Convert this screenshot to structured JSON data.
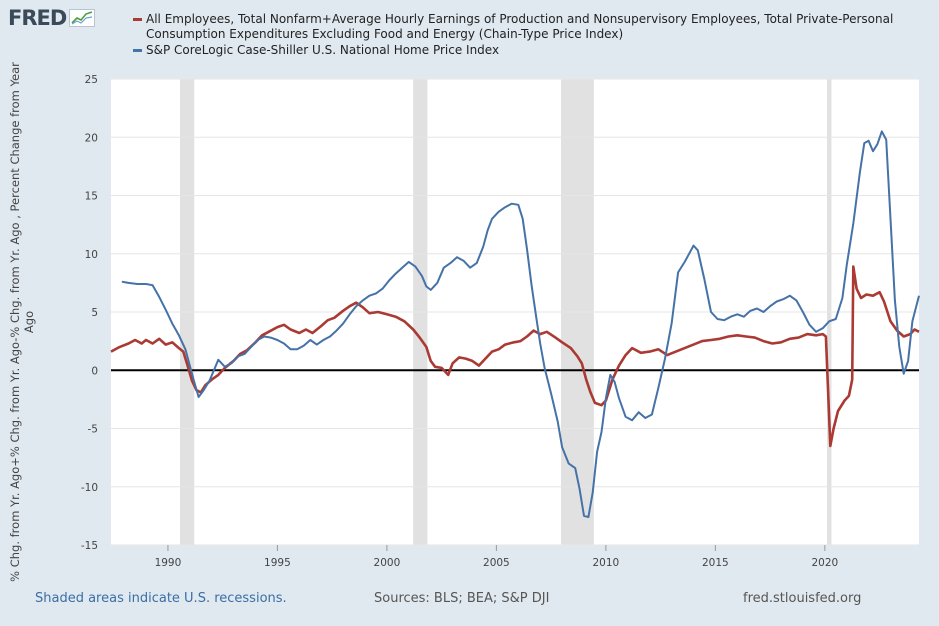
{
  "logo": {
    "text": "FRED"
  },
  "chart_data": {
    "type": "line",
    "ylabel": "% Chg. from Yr. Ago+% Chg. from Yr. Ago-% Chg. from Yr. Ago , Percent Change from Year Ago",
    "xlim": [
      1987.4,
      2024.3
    ],
    "ylim": [
      -15,
      25
    ],
    "yticks": [
      25,
      20,
      15,
      10,
      5,
      0,
      -5,
      -10,
      -15
    ],
    "xticks": [
      1990,
      1995,
      2000,
      2005,
      2010,
      2015,
      2020
    ],
    "recessions": [
      [
        1990.55,
        1991.2
      ],
      [
        2001.2,
        2001.85
      ],
      [
        2007.95,
        2009.45
      ],
      [
        2020.1,
        2020.3
      ]
    ],
    "series": [
      {
        "name": "All Employees, Total Nonfarm+Average Hourly Earnings of Production and Nonsupervisory Employees, Total Private-Personal Consumption Expenditures Excluding Food and Energy (Chain-Type Price Index)",
        "color": "#aa3a33",
        "points": [
          [
            1987.4,
            1.6
          ],
          [
            1987.8,
            2.0
          ],
          [
            1988.2,
            2.3
          ],
          [
            1988.5,
            2.6
          ],
          [
            1988.8,
            2.3
          ],
          [
            1989.0,
            2.6
          ],
          [
            1989.3,
            2.3
          ],
          [
            1989.6,
            2.7
          ],
          [
            1989.9,
            2.2
          ],
          [
            1990.2,
            2.4
          ],
          [
            1990.5,
            1.9
          ],
          [
            1990.7,
            1.6
          ],
          [
            1990.9,
            0.4
          ],
          [
            1991.1,
            -0.9
          ],
          [
            1991.3,
            -1.7
          ],
          [
            1991.5,
            -1.9
          ],
          [
            1991.7,
            -1.3
          ],
          [
            1992.0,
            -0.8
          ],
          [
            1992.3,
            -0.4
          ],
          [
            1992.6,
            0.2
          ],
          [
            1993.0,
            0.8
          ],
          [
            1993.3,
            1.4
          ],
          [
            1993.6,
            1.7
          ],
          [
            1994.0,
            2.4
          ],
          [
            1994.3,
            3.0
          ],
          [
            1994.6,
            3.3
          ],
          [
            1995.0,
            3.7
          ],
          [
            1995.3,
            3.9
          ],
          [
            1995.6,
            3.5
          ],
          [
            1996.0,
            3.2
          ],
          [
            1996.3,
            3.5
          ],
          [
            1996.6,
            3.2
          ],
          [
            1997.0,
            3.8
          ],
          [
            1997.3,
            4.3
          ],
          [
            1997.6,
            4.5
          ],
          [
            1998.0,
            5.1
          ],
          [
            1998.3,
            5.5
          ],
          [
            1998.6,
            5.8
          ],
          [
            1998.9,
            5.4
          ],
          [
            1999.2,
            4.9
          ],
          [
            1999.6,
            5.0
          ],
          [
            2000.0,
            4.8
          ],
          [
            2000.4,
            4.6
          ],
          [
            2000.8,
            4.2
          ],
          [
            2001.2,
            3.5
          ],
          [
            2001.5,
            2.8
          ],
          [
            2001.8,
            2.0
          ],
          [
            2002.0,
            0.8
          ],
          [
            2002.2,
            0.3
          ],
          [
            2002.5,
            0.2
          ],
          [
            2002.8,
            -0.4
          ],
          [
            2003.0,
            0.6
          ],
          [
            2003.3,
            1.1
          ],
          [
            2003.6,
            1.0
          ],
          [
            2003.9,
            0.8
          ],
          [
            2004.2,
            0.4
          ],
          [
            2004.5,
            1.0
          ],
          [
            2004.8,
            1.6
          ],
          [
            2005.1,
            1.8
          ],
          [
            2005.4,
            2.2
          ],
          [
            2005.8,
            2.4
          ],
          [
            2006.1,
            2.5
          ],
          [
            2006.4,
            2.9
          ],
          [
            2006.7,
            3.4
          ],
          [
            2007.0,
            3.1
          ],
          [
            2007.3,
            3.3
          ],
          [
            2007.7,
            2.8
          ],
          [
            2008.0,
            2.4
          ],
          [
            2008.4,
            1.9
          ],
          [
            2008.7,
            1.2
          ],
          [
            2008.9,
            0.6
          ],
          [
            2009.1,
            -0.8
          ],
          [
            2009.3,
            -1.9
          ],
          [
            2009.5,
            -2.8
          ],
          [
            2009.8,
            -3.0
          ],
          [
            2010.0,
            -2.6
          ],
          [
            2010.3,
            -0.8
          ],
          [
            2010.6,
            0.4
          ],
          [
            2010.9,
            1.3
          ],
          [
            2011.2,
            1.9
          ],
          [
            2011.6,
            1.5
          ],
          [
            2012.0,
            1.6
          ],
          [
            2012.4,
            1.8
          ],
          [
            2012.8,
            1.3
          ],
          [
            2013.2,
            1.6
          ],
          [
            2013.6,
            1.9
          ],
          [
            2014.0,
            2.2
          ],
          [
            2014.4,
            2.5
          ],
          [
            2014.8,
            2.6
          ],
          [
            2015.2,
            2.7
          ],
          [
            2015.6,
            2.9
          ],
          [
            2016.0,
            3.0
          ],
          [
            2016.4,
            2.9
          ],
          [
            2016.8,
            2.8
          ],
          [
            2017.2,
            2.5
          ],
          [
            2017.6,
            2.3
          ],
          [
            2018.0,
            2.4
          ],
          [
            2018.4,
            2.7
          ],
          [
            2018.8,
            2.8
          ],
          [
            2019.2,
            3.1
          ],
          [
            2019.6,
            3.0
          ],
          [
            2019.9,
            3.1
          ],
          [
            2020.05,
            2.9
          ],
          [
            2020.15,
            -1.8
          ],
          [
            2020.25,
            -6.5
          ],
          [
            2020.4,
            -5.0
          ],
          [
            2020.6,
            -3.5
          ],
          [
            2020.9,
            -2.6
          ],
          [
            2021.1,
            -2.2
          ],
          [
            2021.25,
            -0.8
          ],
          [
            2021.3,
            8.9
          ],
          [
            2021.45,
            7.0
          ],
          [
            2021.65,
            6.2
          ],
          [
            2021.9,
            6.5
          ],
          [
            2022.2,
            6.4
          ],
          [
            2022.5,
            6.7
          ],
          [
            2022.7,
            5.9
          ],
          [
            2023.0,
            4.2
          ],
          [
            2023.3,
            3.4
          ],
          [
            2023.6,
            2.9
          ],
          [
            2023.9,
            3.1
          ],
          [
            2024.1,
            3.5
          ],
          [
            2024.3,
            3.3
          ]
        ]
      },
      {
        "name": "S&P CoreLogic Case-Shiller U.S. National Home Price Index",
        "color": "#4572a7",
        "points": [
          [
            1987.9,
            7.6
          ],
          [
            1988.2,
            7.5
          ],
          [
            1988.6,
            7.4
          ],
          [
            1989.0,
            7.4
          ],
          [
            1989.3,
            7.3
          ],
          [
            1989.6,
            6.3
          ],
          [
            1989.9,
            5.2
          ],
          [
            1990.2,
            4.0
          ],
          [
            1990.5,
            3.0
          ],
          [
            1990.8,
            1.8
          ],
          [
            1991.0,
            0.4
          ],
          [
            1991.2,
            -1.0
          ],
          [
            1991.4,
            -2.3
          ],
          [
            1991.6,
            -1.8
          ],
          [
            1991.9,
            -0.9
          ],
          [
            1992.1,
            0.0
          ],
          [
            1992.3,
            0.9
          ],
          [
            1992.6,
            0.3
          ],
          [
            1992.9,
            0.6
          ],
          [
            1993.2,
            1.2
          ],
          [
            1993.5,
            1.4
          ],
          [
            1993.8,
            2.0
          ],
          [
            1994.1,
            2.6
          ],
          [
            1994.4,
            2.9
          ],
          [
            1994.7,
            2.8
          ],
          [
            1995.0,
            2.6
          ],
          [
            1995.3,
            2.3
          ],
          [
            1995.6,
            1.8
          ],
          [
            1995.9,
            1.8
          ],
          [
            1996.2,
            2.1
          ],
          [
            1996.5,
            2.6
          ],
          [
            1996.8,
            2.2
          ],
          [
            1997.1,
            2.6
          ],
          [
            1997.4,
            2.9
          ],
          [
            1997.7,
            3.4
          ],
          [
            1998.0,
            4.0
          ],
          [
            1998.3,
            4.8
          ],
          [
            1998.6,
            5.5
          ],
          [
            1998.9,
            6.0
          ],
          [
            1999.2,
            6.4
          ],
          [
            1999.5,
            6.6
          ],
          [
            1999.8,
            7.0
          ],
          [
            2000.1,
            7.7
          ],
          [
            2000.4,
            8.3
          ],
          [
            2000.7,
            8.8
          ],
          [
            2001.0,
            9.3
          ],
          [
            2001.3,
            8.9
          ],
          [
            2001.6,
            8.1
          ],
          [
            2001.8,
            7.2
          ],
          [
            2002.0,
            6.9
          ],
          [
            2002.3,
            7.5
          ],
          [
            2002.6,
            8.8
          ],
          [
            2002.9,
            9.2
          ],
          [
            2003.2,
            9.7
          ],
          [
            2003.5,
            9.4
          ],
          [
            2003.8,
            8.8
          ],
          [
            2004.1,
            9.2
          ],
          [
            2004.4,
            10.6
          ],
          [
            2004.6,
            12.0
          ],
          [
            2004.8,
            13.0
          ],
          [
            2005.1,
            13.6
          ],
          [
            2005.4,
            14.0
          ],
          [
            2005.7,
            14.3
          ],
          [
            2006.0,
            14.2
          ],
          [
            2006.2,
            13.0
          ],
          [
            2006.4,
            10.4
          ],
          [
            2006.6,
            7.4
          ],
          [
            2006.8,
            4.8
          ],
          [
            2007.0,
            2.3
          ],
          [
            2007.2,
            0.2
          ],
          [
            2007.5,
            -2.0
          ],
          [
            2007.8,
            -4.4
          ],
          [
            2008.0,
            -6.6
          ],
          [
            2008.3,
            -8.0
          ],
          [
            2008.6,
            -8.4
          ],
          [
            2008.8,
            -10.2
          ],
          [
            2009.0,
            -12.5
          ],
          [
            2009.2,
            -12.6
          ],
          [
            2009.4,
            -10.5
          ],
          [
            2009.6,
            -7.0
          ],
          [
            2009.8,
            -5.3
          ],
          [
            2010.0,
            -2.4
          ],
          [
            2010.2,
            -0.4
          ],
          [
            2010.4,
            -1.0
          ],
          [
            2010.6,
            -2.4
          ],
          [
            2010.9,
            -4.0
          ],
          [
            2011.2,
            -4.3
          ],
          [
            2011.5,
            -3.6
          ],
          [
            2011.8,
            -4.1
          ],
          [
            2012.1,
            -3.8
          ],
          [
            2012.4,
            -1.5
          ],
          [
            2012.7,
            1.0
          ],
          [
            2013.0,
            4.0
          ],
          [
            2013.3,
            8.4
          ],
          [
            2013.6,
            9.3
          ],
          [
            2013.8,
            10.0
          ],
          [
            2014.0,
            10.7
          ],
          [
            2014.2,
            10.3
          ],
          [
            2014.5,
            7.8
          ],
          [
            2014.8,
            5.0
          ],
          [
            2015.1,
            4.4
          ],
          [
            2015.4,
            4.3
          ],
          [
            2015.7,
            4.6
          ],
          [
            2016.0,
            4.8
          ],
          [
            2016.3,
            4.6
          ],
          [
            2016.6,
            5.1
          ],
          [
            2016.9,
            5.3
          ],
          [
            2017.2,
            5.0
          ],
          [
            2017.5,
            5.5
          ],
          [
            2017.8,
            5.9
          ],
          [
            2018.1,
            6.1
          ],
          [
            2018.4,
            6.4
          ],
          [
            2018.7,
            6.0
          ],
          [
            2019.0,
            5.0
          ],
          [
            2019.3,
            3.9
          ],
          [
            2019.6,
            3.3
          ],
          [
            2019.9,
            3.6
          ],
          [
            2020.2,
            4.2
          ],
          [
            2020.5,
            4.4
          ],
          [
            2020.8,
            6.2
          ],
          [
            2021.0,
            9.0
          ],
          [
            2021.3,
            12.6
          ],
          [
            2021.6,
            17.0
          ],
          [
            2021.8,
            19.5
          ],
          [
            2022.0,
            19.7
          ],
          [
            2022.2,
            18.8
          ],
          [
            2022.4,
            19.4
          ],
          [
            2022.6,
            20.5
          ],
          [
            2022.8,
            19.8
          ],
          [
            2023.0,
            13.0
          ],
          [
            2023.2,
            6.0
          ],
          [
            2023.4,
            2.0
          ],
          [
            2023.6,
            -0.3
          ],
          [
            2023.8,
            0.8
          ],
          [
            2024.0,
            4.2
          ],
          [
            2024.3,
            6.4
          ]
        ]
      }
    ]
  },
  "footer": {
    "recession_note": "Shaded areas indicate U.S. recessions.",
    "sources": "Sources: BLS; BEA; S&P DJI",
    "site": "fred.stlouisfed.org"
  },
  "colors": {
    "background": "#e1e9f0",
    "plot_bg": "#ffffff",
    "recession": "#e1e1e1",
    "zero_line": "#000000"
  }
}
